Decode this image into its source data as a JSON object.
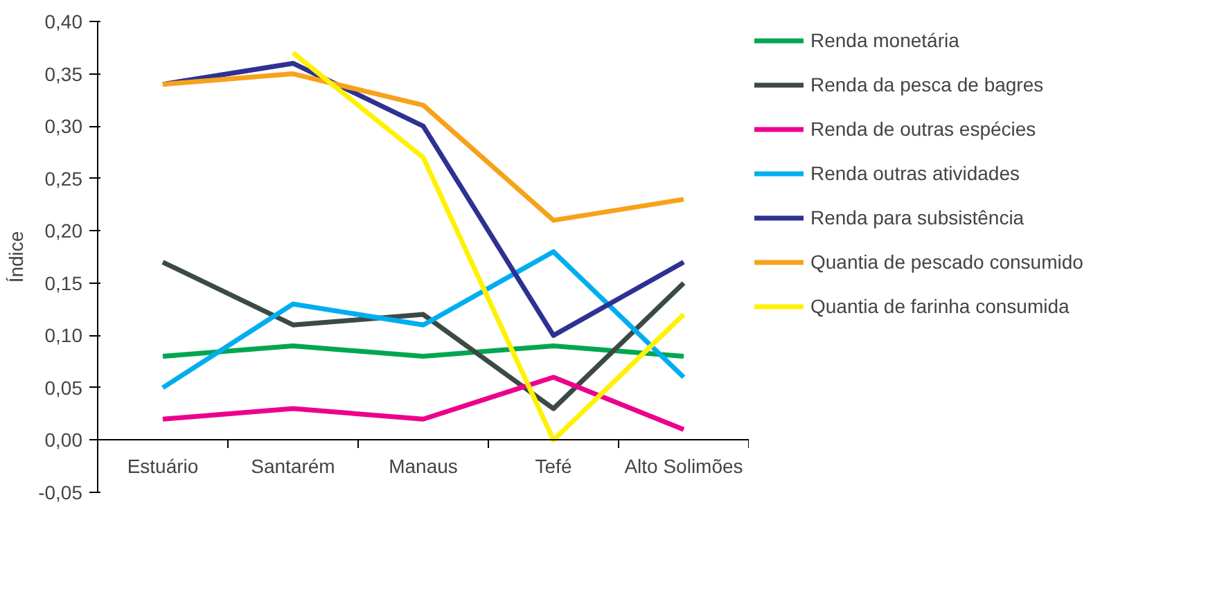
{
  "chart_data": {
    "type": "line",
    "ylabel": "Índice",
    "categories": [
      "Estuário",
      "Santarém",
      "Manaus",
      "Tefé",
      "Alto Solimões"
    ],
    "ylim": [
      -0.05,
      0.4
    ],
    "yticks": [
      {
        "value": -0.05,
        "label": "-0,05"
      },
      {
        "value": 0,
        "label": "0,00"
      },
      {
        "value": 0.05,
        "label": "0,05"
      },
      {
        "value": 0.1,
        "label": "0,10"
      },
      {
        "value": 0.15,
        "label": "0,15"
      },
      {
        "value": 0.2,
        "label": "0,20"
      },
      {
        "value": 0.25,
        "label": "0,25"
      },
      {
        "value": 0.3,
        "label": "0,30"
      },
      {
        "value": 0.35,
        "label": "0,35"
      },
      {
        "value": 0.4,
        "label": "0,40"
      }
    ],
    "grid": false,
    "legend": "right",
    "marker": "none",
    "line_style": "solid",
    "series": [
      {
        "name": "Renda monetária",
        "color": "#00a650",
        "values": [
          0.08,
          0.09,
          0.08,
          0.09,
          0.08
        ]
      },
      {
        "name": "Renda da pesca de bagres",
        "color": "#3c4a45",
        "values": [
          0.17,
          0.11,
          0.12,
          0.03,
          0.15
        ]
      },
      {
        "name": "Renda de outras espécies",
        "color": "#ec008c",
        "values": [
          0.02,
          0.03,
          0.02,
          0.06,
          0.01
        ]
      },
      {
        "name": "Renda outras atividades",
        "color": "#00aeef",
        "values": [
          0.05,
          0.13,
          0.11,
          0.18,
          0.06
        ]
      },
      {
        "name": "Renda para subsistência",
        "color": "#2e3192",
        "values": [
          0.34,
          0.36,
          0.3,
          0.1,
          0.17
        ]
      },
      {
        "name": "Quantia de pescado consumido",
        "color": "#f7a21b",
        "values": [
          0.34,
          0.35,
          0.32,
          0.21,
          0.23
        ]
      },
      {
        "name": "Quantia de farinha consumida",
        "color": "#fff200",
        "values": [
          null,
          0.37,
          0.27,
          0.0,
          0.12
        ]
      }
    ]
  }
}
